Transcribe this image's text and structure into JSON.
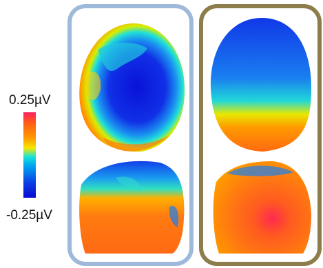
{
  "colorbar": {
    "max_label": "0.25µV",
    "min_label": "-0.25µV",
    "colors": [
      "#ff1f60",
      "#ff9a00",
      "#f4e800",
      "#19e3d8",
      "#00a8f0",
      "#0a0ad0"
    ]
  },
  "panels": [
    {
      "name": "left-panel",
      "border_color": "#9fb9db"
    },
    {
      "name": "right-panel",
      "border_color": "#8c7d4a"
    }
  ]
}
